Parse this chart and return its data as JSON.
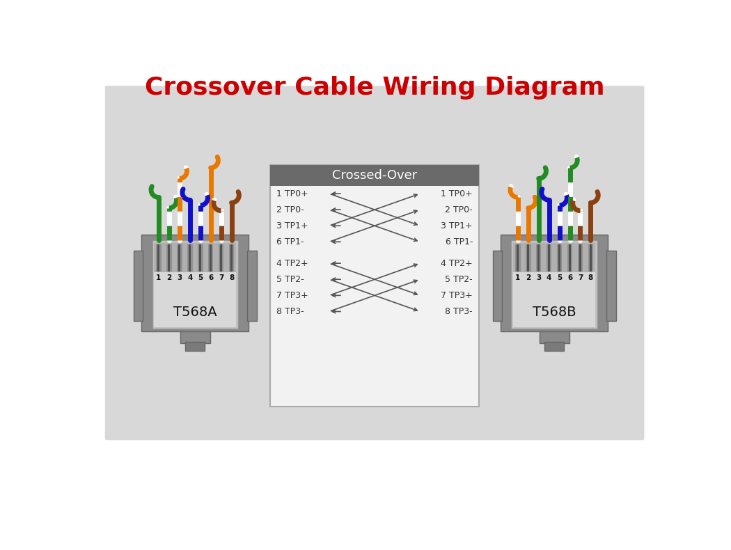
{
  "title": "Crossover Cable Wiring Diagram",
  "title_color": "#cc0000",
  "title_fontsize": 26,
  "bg_color": "#d8d8d8",
  "fig_bg": "#ffffff",
  "box_header_color": "#6a6a6a",
  "box_body_color": "#f2f2f2",
  "crossed_over_title": "Crossed-Over",
  "t568a_label": "T568A",
  "t568b_label": "T568B",
  "pin_labels": [
    "1",
    "2",
    "3",
    "4",
    "5",
    "6",
    "7",
    "8"
  ],
  "left_labels_top": [
    "1 TP0+",
    "2 TP0-",
    "3 TP1+",
    "6 TP1-"
  ],
  "right_labels_top": [
    "1 TP0+",
    "2 TP0-",
    "3 TP1+",
    "6 TP1-"
  ],
  "left_labels_bot": [
    "4 TP2+",
    "5 TP2-",
    "7 TP3+",
    "8 TP3-"
  ],
  "right_labels_bot": [
    "4 TP2+",
    "5 TP2-",
    "7 TP3+",
    "8 TP3-"
  ],
  "line_color": "#555555",
  "label_color": "#333333",
  "green": "#228B22",
  "orange": "#E87800",
  "blue": "#1010CC",
  "brown": "#8B4010",
  "white": "#ffffff"
}
